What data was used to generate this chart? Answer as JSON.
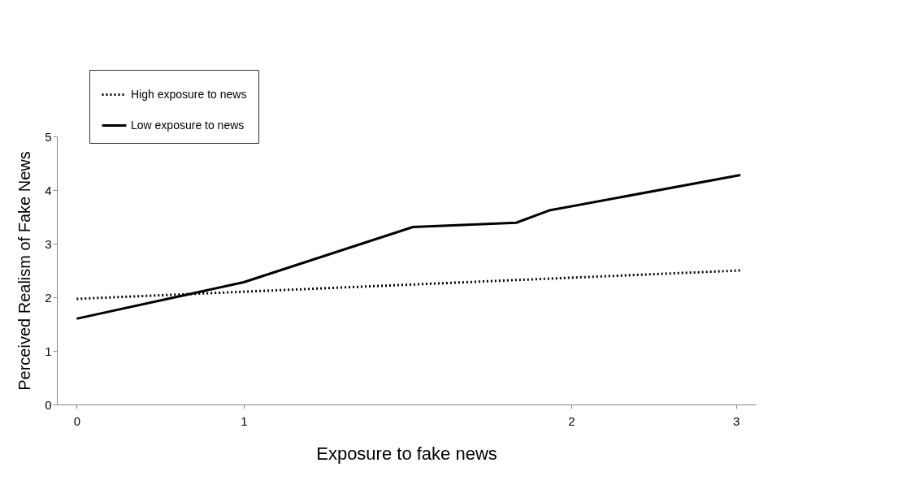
{
  "chart_data": {
    "type": "line",
    "xlabel": "Exposure to fake news",
    "ylabel": "Perceived Realism of Fake News",
    "xlim": [
      -0.09,
      3.09
    ],
    "xticks": [
      0,
      {
        "value": 0.76,
        "label": "1"
      },
      {
        "value": 2.25,
        "label": "2"
      },
      {
        "value": 3,
        "label": "3"
      }
    ],
    "ylim": [
      0,
      5
    ],
    "yticks": [
      0,
      1,
      2,
      3,
      4,
      5
    ],
    "grid": false,
    "legend": "top left",
    "marker": "none",
    "series": [
      {
        "name": "High exposure to news",
        "color": "#000000",
        "line_style": "dotted",
        "x": [
          0,
          3.02
        ],
        "values": [
          1.97,
          2.5
        ]
      },
      {
        "name": "Low exposure to news",
        "color": "#000000",
        "line_style": "solid",
        "x": [
          0,
          0.76,
          1.53,
          2.0,
          2.15,
          3.02
        ],
        "values": [
          1.6,
          2.28,
          3.31,
          3.39,
          3.62,
          4.28
        ]
      }
    ]
  }
}
